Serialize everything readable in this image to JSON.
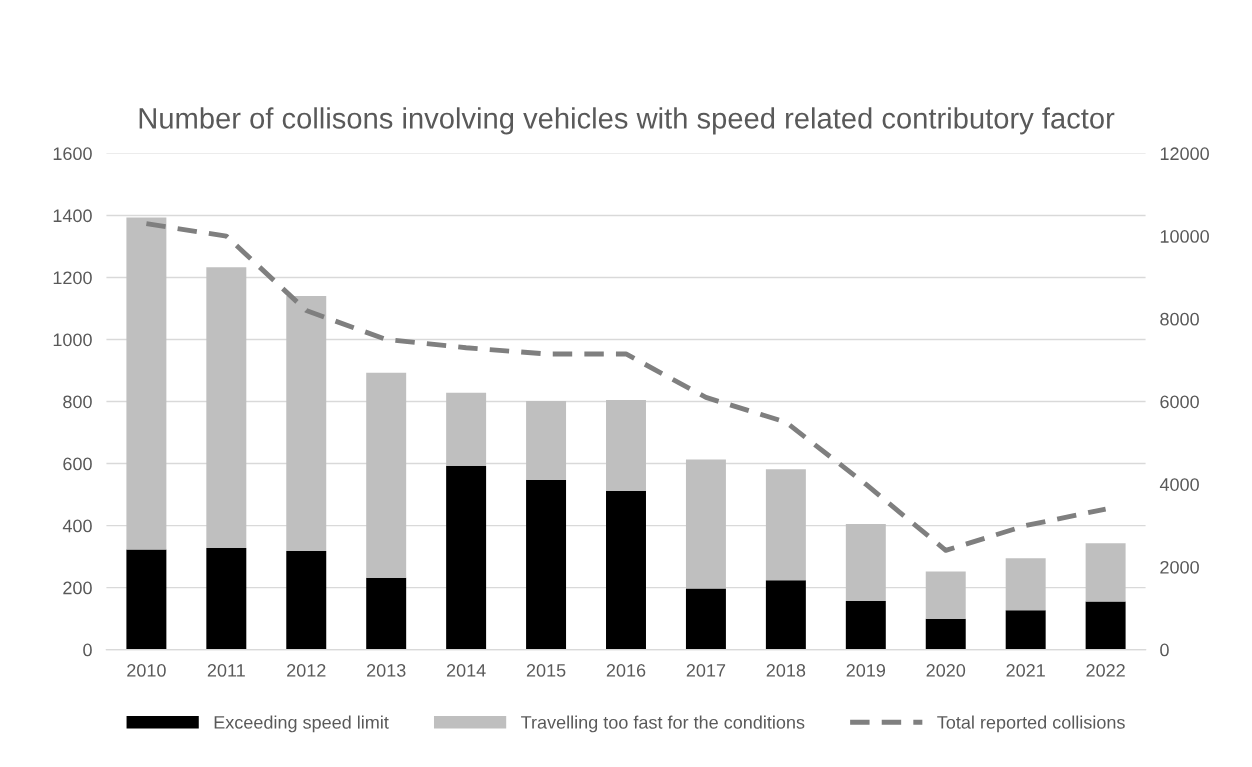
{
  "chart_data": {
    "type": "bar",
    "title": "Number of collisons involving vehicles with speed related contributory factor",
    "categories": [
      "2010",
      "2011",
      "2012",
      "2013",
      "2014",
      "2015",
      "2016",
      "2017",
      "2018",
      "2019",
      "2020",
      "2021",
      "2022"
    ],
    "stacked": true,
    "series": [
      {
        "name": "Exceeding speed limit",
        "color": "#000000",
        "values": [
          323,
          328,
          318,
          232,
          593,
          548,
          512,
          197,
          224,
          157,
          100,
          127,
          155
        ]
      },
      {
        "name": "Travelling too fast for the conditions",
        "color": "#bfbfbf",
        "values": [
          1070,
          905,
          822,
          661,
          235,
          254,
          293,
          416,
          358,
          248,
          152,
          168,
          188
        ]
      },
      {
        "name": "Total reported collisions",
        "type": "line",
        "axis": "y2",
        "color": "#7f7f7f",
        "line_style": "dashed",
        "values": [
          10300,
          10000,
          8200,
          7500,
          7300,
          7150,
          7150,
          6100,
          5500,
          4000,
          2400,
          3000,
          3400
        ]
      }
    ],
    "ylim": [
      0,
      1600
    ],
    "yticks": [
      0,
      200,
      400,
      600,
      800,
      1000,
      1200,
      1400,
      1600
    ],
    "y2lim": [
      0,
      12000
    ],
    "y2ticks": [
      0,
      2000,
      4000,
      6000,
      8000,
      10000,
      12000
    ],
    "grid": "y",
    "legend": "bottom"
  }
}
